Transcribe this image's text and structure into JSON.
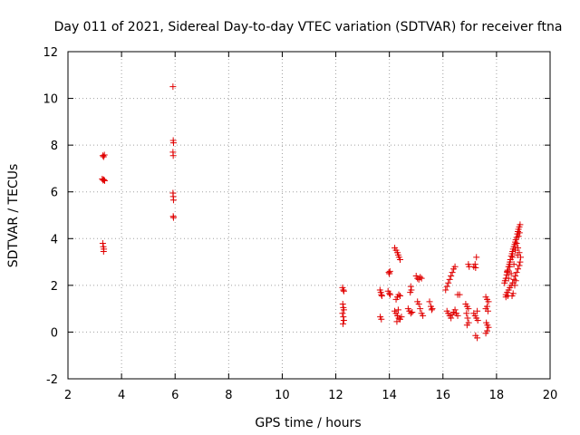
{
  "chart_data": {
    "type": "scatter",
    "title": "Day 011 of 2021, Sidereal Day-to-day VTEC variation (SDTVAR) for receiver ftna",
    "xlabel": "GPS time / hours",
    "ylabel": "SDTVAR / TECUs",
    "xlim": [
      2,
      20
    ],
    "ylim": [
      -2,
      12
    ],
    "xticks": [
      2,
      4,
      6,
      8,
      10,
      12,
      14,
      16,
      18,
      20
    ],
    "yticks": [
      -2,
      0,
      2,
      4,
      6,
      8,
      10,
      12
    ],
    "grid": true,
    "marker": "+",
    "color": "#e00000",
    "series": [
      {
        "name": "SDTVAR",
        "points": [
          [
            3.3,
            7.55
          ],
          [
            3.33,
            7.5
          ],
          [
            3.36,
            7.58
          ],
          [
            3.28,
            6.55
          ],
          [
            3.31,
            6.5
          ],
          [
            3.34,
            6.52
          ],
          [
            3.37,
            6.48
          ],
          [
            3.3,
            3.8
          ],
          [
            3.32,
            3.65
          ],
          [
            3.34,
            3.55
          ],
          [
            3.33,
            3.45
          ],
          [
            5.92,
            10.5
          ],
          [
            5.93,
            8.2
          ],
          [
            5.94,
            8.1
          ],
          [
            5.92,
            7.7
          ],
          [
            5.93,
            7.55
          ],
          [
            5.92,
            5.95
          ],
          [
            5.93,
            5.8
          ],
          [
            5.94,
            5.65
          ],
          [
            5.93,
            4.95
          ],
          [
            5.94,
            4.9
          ],
          [
            12.25,
            1.9
          ],
          [
            12.28,
            1.8
          ],
          [
            12.3,
            1.75
          ],
          [
            12.26,
            1.2
          ],
          [
            12.28,
            1.05
          ],
          [
            12.3,
            0.95
          ],
          [
            12.25,
            0.8
          ],
          [
            12.28,
            0.65
          ],
          [
            12.3,
            0.5
          ],
          [
            12.27,
            0.35
          ],
          [
            13.65,
            1.8
          ],
          [
            13.68,
            1.7
          ],
          [
            13.7,
            1.6
          ],
          [
            13.72,
            1.55
          ],
          [
            13.66,
            0.65
          ],
          [
            13.7,
            0.55
          ],
          [
            13.95,
            1.75
          ],
          [
            14.0,
            1.65
          ],
          [
            14.03,
            1.6
          ],
          [
            13.98,
            2.55
          ],
          [
            14.02,
            2.6
          ],
          [
            14.0,
            2.5
          ],
          [
            14.2,
            3.6
          ],
          [
            14.25,
            3.5
          ],
          [
            14.3,
            3.4
          ],
          [
            14.33,
            3.3
          ],
          [
            14.36,
            3.2
          ],
          [
            14.4,
            3.1
          ],
          [
            14.25,
            1.4
          ],
          [
            14.3,
            1.5
          ],
          [
            14.35,
            1.6
          ],
          [
            14.4,
            1.55
          ],
          [
            14.2,
            0.9
          ],
          [
            14.25,
            0.8
          ],
          [
            14.3,
            0.7
          ],
          [
            14.35,
            0.6
          ],
          [
            14.4,
            0.55
          ],
          [
            14.45,
            0.65
          ],
          [
            14.28,
            0.45
          ],
          [
            14.33,
            0.95
          ],
          [
            14.7,
            1.0
          ],
          [
            14.75,
            0.9
          ],
          [
            14.8,
            0.8
          ],
          [
            14.85,
            0.85
          ],
          [
            14.78,
            1.7
          ],
          [
            14.82,
            1.8
          ],
          [
            14.8,
            1.95
          ],
          [
            15.0,
            2.4
          ],
          [
            15.05,
            2.3
          ],
          [
            15.1,
            2.25
          ],
          [
            15.15,
            2.35
          ],
          [
            15.2,
            2.3
          ],
          [
            15.05,
            1.3
          ],
          [
            15.1,
            1.2
          ],
          [
            15.15,
            1.0
          ],
          [
            15.2,
            0.8
          ],
          [
            15.25,
            0.7
          ],
          [
            15.5,
            1.3
          ],
          [
            15.55,
            1.1
          ],
          [
            15.6,
            1.0
          ],
          [
            15.58,
            0.95
          ],
          [
            16.1,
            1.8
          ],
          [
            16.15,
            1.95
          ],
          [
            16.2,
            2.1
          ],
          [
            16.25,
            2.25
          ],
          [
            16.3,
            2.4
          ],
          [
            16.35,
            2.55
          ],
          [
            16.4,
            2.7
          ],
          [
            16.45,
            2.8
          ],
          [
            16.15,
            0.9
          ],
          [
            16.2,
            0.8
          ],
          [
            16.25,
            0.7
          ],
          [
            16.3,
            0.6
          ],
          [
            16.35,
            0.75
          ],
          [
            16.4,
            0.85
          ],
          [
            16.45,
            0.95
          ],
          [
            16.5,
            0.8
          ],
          [
            16.55,
            0.7
          ],
          [
            16.55,
            1.6
          ],
          [
            16.62,
            1.6
          ],
          [
            16.85,
            1.2
          ],
          [
            16.9,
            1.1
          ],
          [
            16.95,
            1.0
          ],
          [
            16.88,
            0.8
          ],
          [
            16.92,
            0.6
          ],
          [
            16.96,
            0.4
          ],
          [
            16.9,
            0.3
          ],
          [
            16.95,
            2.9
          ],
          [
            16.98,
            2.8
          ],
          [
            17.15,
            2.8
          ],
          [
            17.2,
            2.9
          ],
          [
            17.25,
            3.2
          ],
          [
            17.22,
            2.75
          ],
          [
            17.15,
            0.8
          ],
          [
            17.2,
            0.7
          ],
          [
            17.25,
            0.6
          ],
          [
            17.3,
            0.5
          ],
          [
            17.28,
            0.9
          ],
          [
            17.22,
            -0.15
          ],
          [
            17.28,
            -0.25
          ],
          [
            17.6,
            1.5
          ],
          [
            17.65,
            1.4
          ],
          [
            17.7,
            1.3
          ],
          [
            17.65,
            1.1
          ],
          [
            17.6,
            1.0
          ],
          [
            17.68,
            0.9
          ],
          [
            17.62,
            0.4
          ],
          [
            17.66,
            0.3
          ],
          [
            17.7,
            0.2
          ],
          [
            17.65,
            0.05
          ],
          [
            17.6,
            -0.05
          ],
          [
            18.3,
            2.1
          ],
          [
            18.32,
            2.2
          ],
          [
            18.35,
            2.3
          ],
          [
            18.38,
            2.45
          ],
          [
            18.4,
            2.55
          ],
          [
            18.42,
            2.65
          ],
          [
            18.45,
            2.8
          ],
          [
            18.48,
            2.9
          ],
          [
            18.5,
            3.0
          ],
          [
            18.52,
            3.1
          ],
          [
            18.55,
            3.25
          ],
          [
            18.58,
            3.35
          ],
          [
            18.6,
            3.45
          ],
          [
            18.62,
            3.55
          ],
          [
            18.65,
            3.65
          ],
          [
            18.68,
            3.75
          ],
          [
            18.7,
            3.85
          ],
          [
            18.72,
            3.95
          ],
          [
            18.75,
            4.05
          ],
          [
            18.78,
            4.2
          ],
          [
            18.8,
            4.3
          ],
          [
            18.82,
            4.4
          ],
          [
            18.85,
            4.5
          ],
          [
            18.88,
            4.6
          ],
          [
            18.35,
            1.6
          ],
          [
            18.4,
            1.7
          ],
          [
            18.45,
            1.8
          ],
          [
            18.5,
            1.9
          ],
          [
            18.55,
            2.0
          ],
          [
            18.6,
            2.1
          ],
          [
            18.65,
            2.25
          ],
          [
            18.7,
            2.4
          ],
          [
            18.75,
            2.55
          ],
          [
            18.8,
            2.7
          ],
          [
            18.85,
            2.85
          ],
          [
            18.88,
            3.0
          ],
          [
            18.9,
            3.2
          ],
          [
            18.85,
            3.4
          ],
          [
            18.8,
            3.6
          ],
          [
            18.75,
            3.8
          ],
          [
            18.4,
            2.6
          ],
          [
            18.5,
            2.8
          ],
          [
            18.6,
            3.2
          ],
          [
            18.7,
            3.5
          ],
          [
            18.78,
            3.3
          ],
          [
            18.65,
            2.9
          ],
          [
            18.55,
            2.5
          ],
          [
            18.45,
            2.3
          ],
          [
            18.58,
            1.55
          ],
          [
            18.62,
            1.65
          ],
          [
            18.35,
            1.5
          ],
          [
            18.42,
            1.55
          ],
          [
            18.68,
            2.0
          ],
          [
            18.72,
            2.2
          ],
          [
            18.82,
            4.1
          ],
          [
            18.86,
            4.25
          ]
        ]
      }
    ]
  }
}
